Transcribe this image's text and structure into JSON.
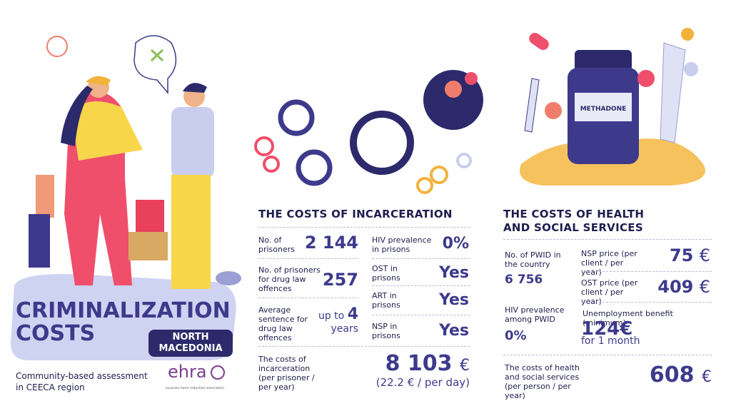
{
  "left": {
    "title_line1": "CRIMINALIZATION",
    "title_line2": "COSTS",
    "country_line1": "NORTH",
    "country_line2": "MACEDONIA",
    "footer_line1": "Community-based assessment",
    "footer_line2": "in CEECA region",
    "logo": "ehra",
    "logo_sub": "eurasian harm reduction association"
  },
  "illustration": {
    "bottle_label": "METHADONE"
  },
  "incarceration": {
    "title": "THE COSTS OF INCARCERATION",
    "left_rows": [
      {
        "label": "No. of prisoners",
        "value": "2 144"
      },
      {
        "label": "No. of prisoners for drug law offences",
        "value": "257"
      },
      {
        "label": "Average sentence for drug law offences",
        "prefix": "up to",
        "value": "4",
        "suffix": "years"
      }
    ],
    "right_rows": [
      {
        "label": "HIV prevalence in prisons",
        "value": "0%"
      },
      {
        "label": "OST in prisons",
        "value": "Yes"
      },
      {
        "label": "ART in prisons",
        "value": "Yes"
      },
      {
        "label": "NSP in prisons",
        "value": "Yes"
      }
    ],
    "total": {
      "label": "The costs of incarceration (per prisoner / per year)",
      "value": "8 103",
      "unit": "€",
      "note": "(22.2 € / per day)"
    }
  },
  "health": {
    "title": "THE COSTS OF HEALTH AND SOCIAL SERVICES",
    "pwid": {
      "label": "No. of PWID in the country",
      "value": "6 756"
    },
    "hiv": {
      "label": "HIV prevalence among PWID",
      "value": "0%"
    },
    "nsp": {
      "label": "NSP price (per client / per year)",
      "value": "75",
      "unit": "€"
    },
    "ost": {
      "label": "OST price (per client / per year)",
      "value": "409",
      "unit": "€"
    },
    "benefit": {
      "label": "Unemployment benefit (minimum)",
      "value": "124€",
      "note": "for 1 month"
    },
    "total": {
      "label": "The costs of health and social services (per person / per year)",
      "value": "608",
      "unit": "€"
    }
  }
}
